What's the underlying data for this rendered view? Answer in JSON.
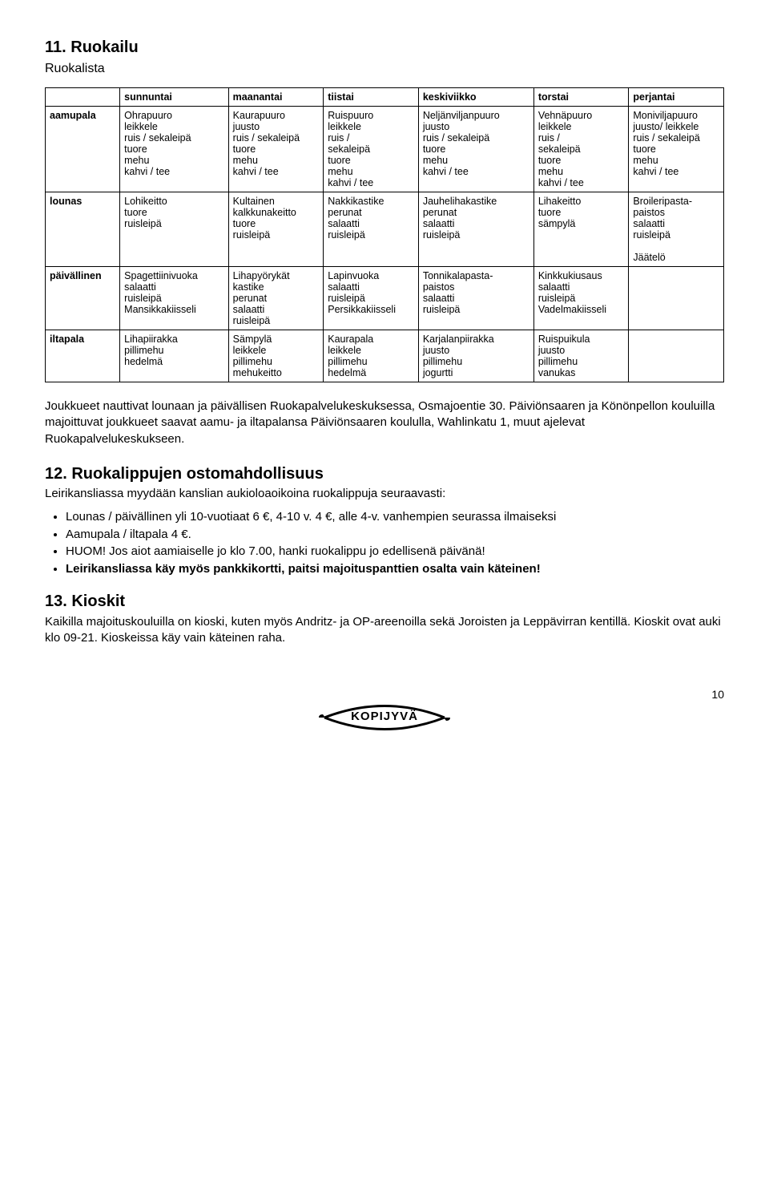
{
  "section11": {
    "title": "11.  Ruokailu",
    "subtitle": "Ruokalista",
    "columns": [
      "",
      "sunnuntai",
      "maanantai",
      "tiistai",
      "keskiviikko",
      "torstai",
      "perjantai"
    ],
    "col_widths": [
      "11%",
      "16%",
      "14%",
      "14%",
      "17%",
      "14%",
      "14%"
    ],
    "rows": [
      {
        "label": "aamupala",
        "cells": [
          "Ohrapuuro\nleikkele\nruis / sekaleipä\ntuore\nmehu\nkahvi / tee",
          "Kaurapuuro\njuusto\nruis / sekaleipä\ntuore\nmehu\nkahvi / tee",
          "Ruispuuro\nleikkele\nruis /\nsekaleipä\ntuore\nmehu\nkahvi / tee",
          "Neljänviljanpuuro\njuusto\nruis / sekaleipä\ntuore\nmehu\nkahvi / tee",
          "Vehnäpuuro\nleikkele\nruis /\nsekaleipä\ntuore\nmehu\nkahvi / tee",
          "Moniviljapuuro\njuusto/ leikkele\nruis / sekaleipä\ntuore\nmehu\nkahvi / tee"
        ]
      },
      {
        "label": "lounas",
        "cells": [
          "Lohikeitto\ntuore\nruisleipä",
          "Kultainen\nkalkkunakeitto\ntuore\nruisleipä",
          "Nakkikastike\nperunat\nsalaatti\nruisleipä",
          "Jauhelihakastike\nperunat\nsalaatti\nruisleipä",
          "Lihakeitto\ntuore\nsämpylä",
          "Broileripasta-\npaistos\nsalaatti\nruisleipä\n\nJäätelö"
        ]
      },
      {
        "label": "päivällinen",
        "cells": [
          "Spagettiinivuoka\nsalaatti\nruisleipä\nMansikkakiisseli",
          "Lihapyörykät\nkastike\nperunat\nsalaatti\nruisleipä",
          "Lapinvuoka\nsalaatti\nruisleipä\nPersikkakiisseli",
          "Tonnikalapasta-\npaistos\nsalaatti\nruisleipä",
          "Kinkkukiusaus\nsalaatti\nruisleipä\nVadelmakiisseli",
          ""
        ]
      },
      {
        "label": "iltapala",
        "cells": [
          "Lihapiirakka\npillimehu\nhedelmä",
          "Sämpylä\nleikkele\npillimehu\nmehukeitto",
          "Kaurapala\nleikkele\npillimehu\nhedelmä",
          "Karjalanpiirakka\njuusto\npillimehu\njogurtti",
          "Ruispuikula\njuusto\npillimehu\nvanukas",
          ""
        ]
      }
    ],
    "paragraph": "Joukkueet nauttivat lounaan ja päivällisen Ruokapalvelukeskuksessa, Osmajoentie 30. Päiviönsaaren ja Könönpellon kouluilla majoittuvat joukkueet saavat aamu- ja iltapalansa Päiviönsaaren koululla, Wahlinkatu 1, muut ajelevat Ruokapalvelukeskukseen."
  },
  "section12": {
    "title": "12.  Ruokalippujen ostomahdollisuus",
    "lead": "Leirikansliassa myydään kanslian aukioloaoikoina ruokalippuja seuraavasti:",
    "bullets": [
      {
        "text": "Lounas / päivällinen yli 10-vuotiaat 6 €, 4-10 v. 4 €, alle 4-v. vanhempien seurassa ilmaiseksi",
        "bold": false
      },
      {
        "text": "Aamupala / iltapala 4 €.",
        "bold": false
      },
      {
        "text": "HUOM! Jos aiot aamiaiselle jo klo 7.00, hanki ruokalippu jo edellisenä päivänä!",
        "bold": false
      },
      {
        "text": "Leirikansliassa käy myös pankkikortti, paitsi majoituspanttien osalta vain käteinen!",
        "bold": true
      }
    ]
  },
  "section13": {
    "title": "13.  Kioskit",
    "paragraph": "Kaikilla majoituskouluilla on kioski, kuten myös Andritz- ja OP-areenoilla sekä Joroisten ja Leppävirran kentillä. Kioskit ovat auki klo 09-21. Kioskeissa käy vain käteinen raha."
  },
  "footer": {
    "logo_text": "KOPIJYVÄ",
    "page_number": "10"
  }
}
